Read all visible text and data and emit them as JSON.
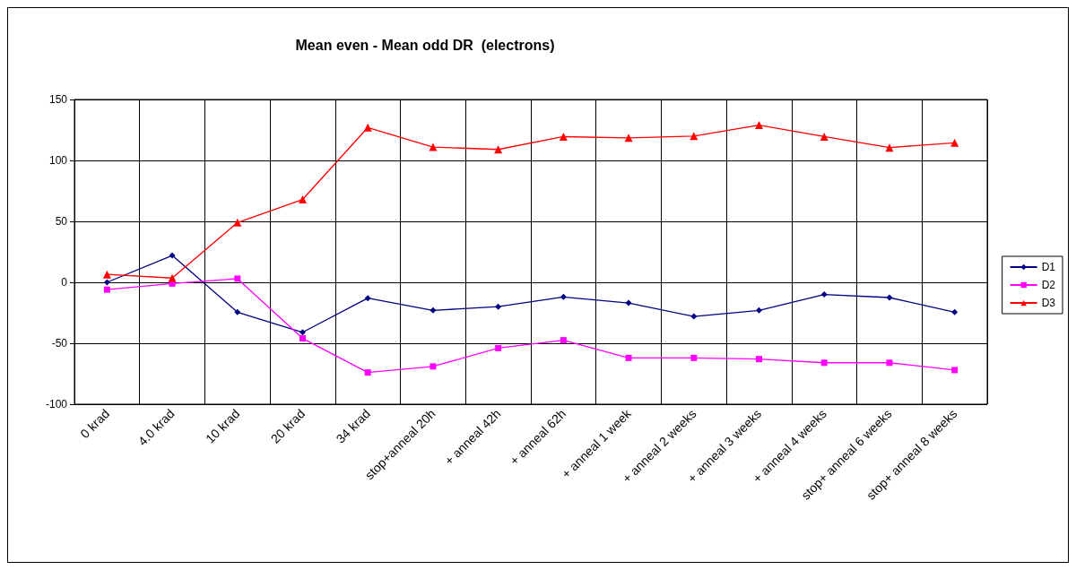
{
  "chart_data": {
    "type": "line",
    "title": "Mean even - Mean odd DR  (electrons)",
    "categories": [
      "0 krad",
      "4.0 krad",
      "10 krad",
      "20 krad",
      "34 krad",
      "stop+anneal 20h",
      "+ anneal 42h",
      "+ anneal 62h",
      "+ anneal 1 week",
      "+ anneal 2 weeks",
      "+ anneal 3 weeks",
      "+ anneal 4 weeks",
      "stop+ anneal 6 weeks",
      "stop+ anneal 8 weeks"
    ],
    "series": [
      {
        "name": "D1",
        "color": "#000080",
        "marker": "diamond",
        "values": [
          0,
          22,
          -24.5,
          -41,
          -13,
          -23,
          -20,
          -12,
          -17,
          -28,
          -23,
          -10,
          -12.5,
          -24.5
        ]
      },
      {
        "name": "D2",
        "color": "#ff00ff",
        "marker": "square",
        "values": [
          -6,
          -1,
          3,
          -46,
          -74,
          -69,
          -54,
          -47.5,
          -62,
          -62,
          -63,
          -66,
          -66,
          -72
        ]
      },
      {
        "name": "D3",
        "color": "#ff0000",
        "marker": "triangle",
        "values": [
          6.5,
          3.5,
          49,
          68,
          127,
          111,
          109,
          119.5,
          118.5,
          120,
          129,
          119.5,
          110.5,
          114.5
        ]
      }
    ],
    "ylim": [
      -100,
      150
    ],
    "yticks": [
      -100,
      -50,
      0,
      50,
      100,
      150
    ],
    "grid": true,
    "legend": "right",
    "line_style": "solid"
  }
}
